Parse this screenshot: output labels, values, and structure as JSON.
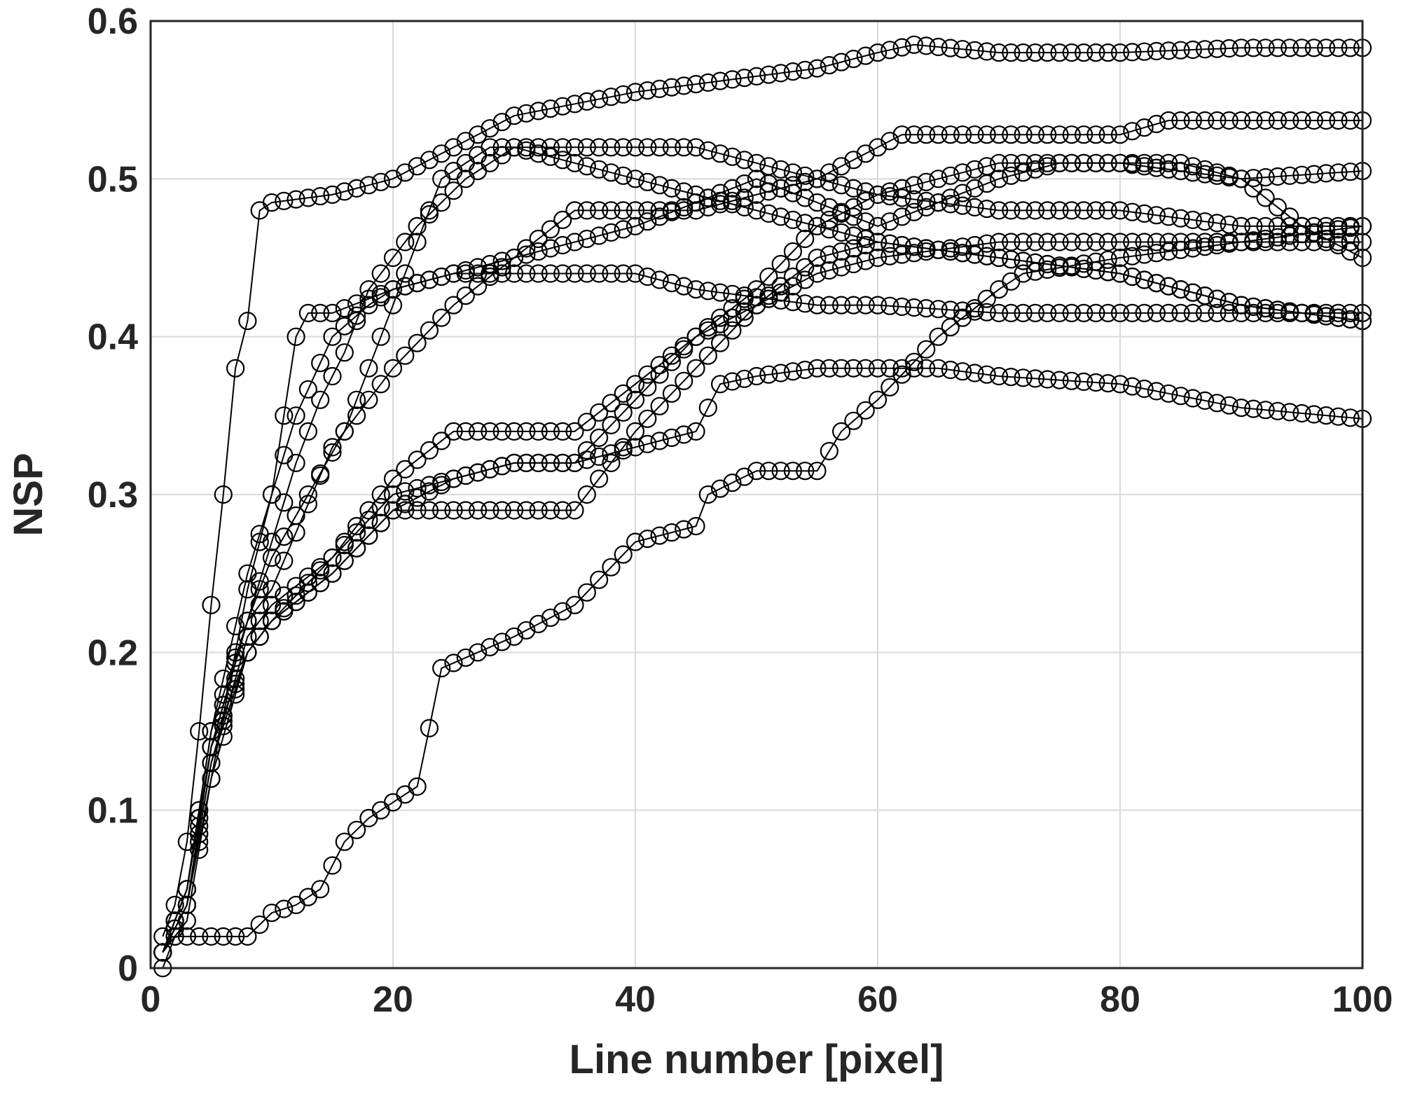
{
  "chart_data": {
    "type": "line",
    "marker": "circle",
    "line_color": "#000000",
    "title": "",
    "xlabel": "Line number [pixel]",
    "ylabel": "NSP",
    "xlim": [
      0,
      100
    ],
    "ylim": [
      0,
      0.6
    ],
    "x_ticks": [
      0,
      20,
      40,
      60,
      80,
      100
    ],
    "y_ticks": [
      0,
      0.1,
      0.2,
      0.3,
      0.4,
      0.5,
      0.6
    ],
    "x_tick_labels": [
      "0",
      "20",
      "40",
      "60",
      "80",
      "100"
    ],
    "y_tick_labels": [
      "0",
      "0.1",
      "0.2",
      "0.3",
      "0.4",
      "0.5",
      "0.6"
    ],
    "grid": true,
    "legend": "none",
    "series": [
      {
        "x": [
          1,
          2,
          3,
          4,
          5,
          6,
          7,
          8,
          9,
          10,
          15,
          20,
          25,
          30,
          40,
          50,
          55,
          60,
          63,
          70,
          80,
          90,
          100
        ],
        "y": [
          0.02,
          0.04,
          0.08,
          0.15,
          0.23,
          0.3,
          0.38,
          0.41,
          0.48,
          0.485,
          0.49,
          0.5,
          0.52,
          0.54,
          0.555,
          0.565,
          0.57,
          0.58,
          0.585,
          0.58,
          0.58,
          0.583,
          0.583
        ]
      },
      {
        "x": [
          1,
          3,
          5,
          8,
          10,
          12,
          15,
          18,
          20,
          25,
          30,
          35,
          40,
          45,
          50,
          55,
          60,
          62,
          70,
          80,
          84,
          90,
          100
        ],
        "y": [
          0.01,
          0.03,
          0.12,
          0.24,
          0.3,
          0.35,
          0.4,
          0.42,
          0.43,
          0.44,
          0.45,
          0.48,
          0.48,
          0.48,
          0.49,
          0.5,
          0.52,
          0.528,
          0.528,
          0.528,
          0.537,
          0.537,
          0.537
        ]
      },
      {
        "x": [
          1,
          3,
          5,
          8,
          10,
          13,
          16,
          20,
          24,
          28,
          30,
          40,
          45,
          50,
          55,
          60,
          70,
          80,
          90,
          100
        ],
        "y": [
          0.01,
          0.05,
          0.15,
          0.22,
          0.26,
          0.3,
          0.34,
          0.42,
          0.5,
          0.52,
          0.52,
          0.52,
          0.52,
          0.51,
          0.5,
          0.49,
          0.48,
          0.48,
          0.47,
          0.47
        ]
      },
      {
        "x": [
          1,
          3,
          5,
          8,
          10,
          12,
          14,
          16,
          18,
          20,
          22,
          26,
          30,
          35,
          40,
          50,
          55,
          60,
          70,
          80,
          85,
          90,
          100
        ],
        "y": [
          0.01,
          0.04,
          0.14,
          0.22,
          0.27,
          0.32,
          0.36,
          0.39,
          0.43,
          0.45,
          0.47,
          0.5,
          0.52,
          0.51,
          0.5,
          0.48,
          0.47,
          0.46,
          0.45,
          0.44,
          0.43,
          0.42,
          0.41
        ]
      },
      {
        "x": [
          1,
          3,
          5,
          8,
          10,
          12,
          13,
          15,
          20,
          25,
          30,
          35,
          40,
          45,
          50,
          55,
          60,
          70,
          80,
          90,
          100
        ],
        "y": [
          0.01,
          0.05,
          0.15,
          0.25,
          0.3,
          0.4,
          0.415,
          0.415,
          0.43,
          0.44,
          0.44,
          0.44,
          0.44,
          0.43,
          0.425,
          0.42,
          0.42,
          0.415,
          0.415,
          0.415,
          0.415
        ]
      },
      {
        "x": [
          1,
          3,
          5,
          8,
          10,
          15,
          20,
          25,
          30,
          35,
          40,
          50,
          60,
          70,
          75,
          80,
          85,
          90,
          95,
          100
        ],
        "y": [
          0.01,
          0.05,
          0.14,
          0.22,
          0.24,
          0.33,
          0.38,
          0.42,
          0.45,
          0.46,
          0.47,
          0.5,
          0.47,
          0.5,
          0.51,
          0.51,
          0.51,
          0.5,
          0.47,
          0.45
        ]
      },
      {
        "x": [
          1,
          3,
          5,
          8,
          10,
          15,
          20,
          25,
          30,
          35,
          40,
          45,
          50,
          55,
          60,
          65,
          70,
          80,
          90,
          100
        ],
        "y": [
          0.01,
          0.04,
          0.12,
          0.2,
          0.22,
          0.25,
          0.29,
          0.31,
          0.32,
          0.32,
          0.36,
          0.4,
          0.43,
          0.47,
          0.49,
          0.5,
          0.51,
          0.51,
          0.5,
          0.505
        ]
      },
      {
        "x": [
          1,
          3,
          5,
          8,
          10,
          15,
          20,
          25,
          30,
          35,
          40,
          45,
          50,
          55,
          60,
          70,
          80,
          90,
          95,
          100
        ],
        "y": [
          0.01,
          0.05,
          0.14,
          0.2,
          0.22,
          0.26,
          0.31,
          0.34,
          0.34,
          0.34,
          0.37,
          0.4,
          0.42,
          0.44,
          0.45,
          0.46,
          0.46,
          0.46,
          0.46,
          0.46
        ]
      },
      {
        "x": [
          1,
          3,
          5,
          8,
          10,
          15,
          20,
          25,
          30,
          35,
          40,
          45,
          50,
          55,
          60,
          70,
          80,
          90,
          100
        ],
        "y": [
          0.01,
          0.04,
          0.13,
          0.2,
          0.22,
          0.25,
          0.29,
          0.29,
          0.29,
          0.29,
          0.34,
          0.38,
          0.42,
          0.45,
          0.46,
          0.45,
          0.44,
          0.42,
          0.41
        ]
      },
      {
        "x": [
          1,
          3,
          5,
          8,
          10,
          15,
          20,
          25,
          30,
          35,
          40,
          45,
          47,
          50,
          55,
          60,
          65,
          70,
          80,
          90,
          100
        ],
        "y": [
          0.01,
          0.04,
          0.13,
          0.21,
          0.23,
          0.26,
          0.3,
          0.31,
          0.32,
          0.32,
          0.33,
          0.34,
          0.37,
          0.375,
          0.38,
          0.38,
          0.38,
          0.375,
          0.37,
          0.355,
          0.348
        ]
      },
      {
        "x": [
          1,
          2,
          4,
          6,
          8,
          10,
          12,
          14,
          16,
          18,
          20,
          22,
          23,
          24,
          27,
          30,
          35,
          40,
          45,
          46,
          50,
          55,
          57,
          60,
          65,
          70,
          72,
          80,
          90,
          100
        ],
        "y": [
          0.0,
          0.02,
          0.02,
          0.02,
          0.02,
          0.035,
          0.04,
          0.05,
          0.08,
          0.095,
          0.105,
          0.115,
          0.152,
          0.19,
          0.2,
          0.21,
          0.23,
          0.27,
          0.28,
          0.3,
          0.315,
          0.315,
          0.34,
          0.36,
          0.4,
          0.43,
          0.44,
          0.45,
          0.46,
          0.47
        ]
      }
    ]
  }
}
